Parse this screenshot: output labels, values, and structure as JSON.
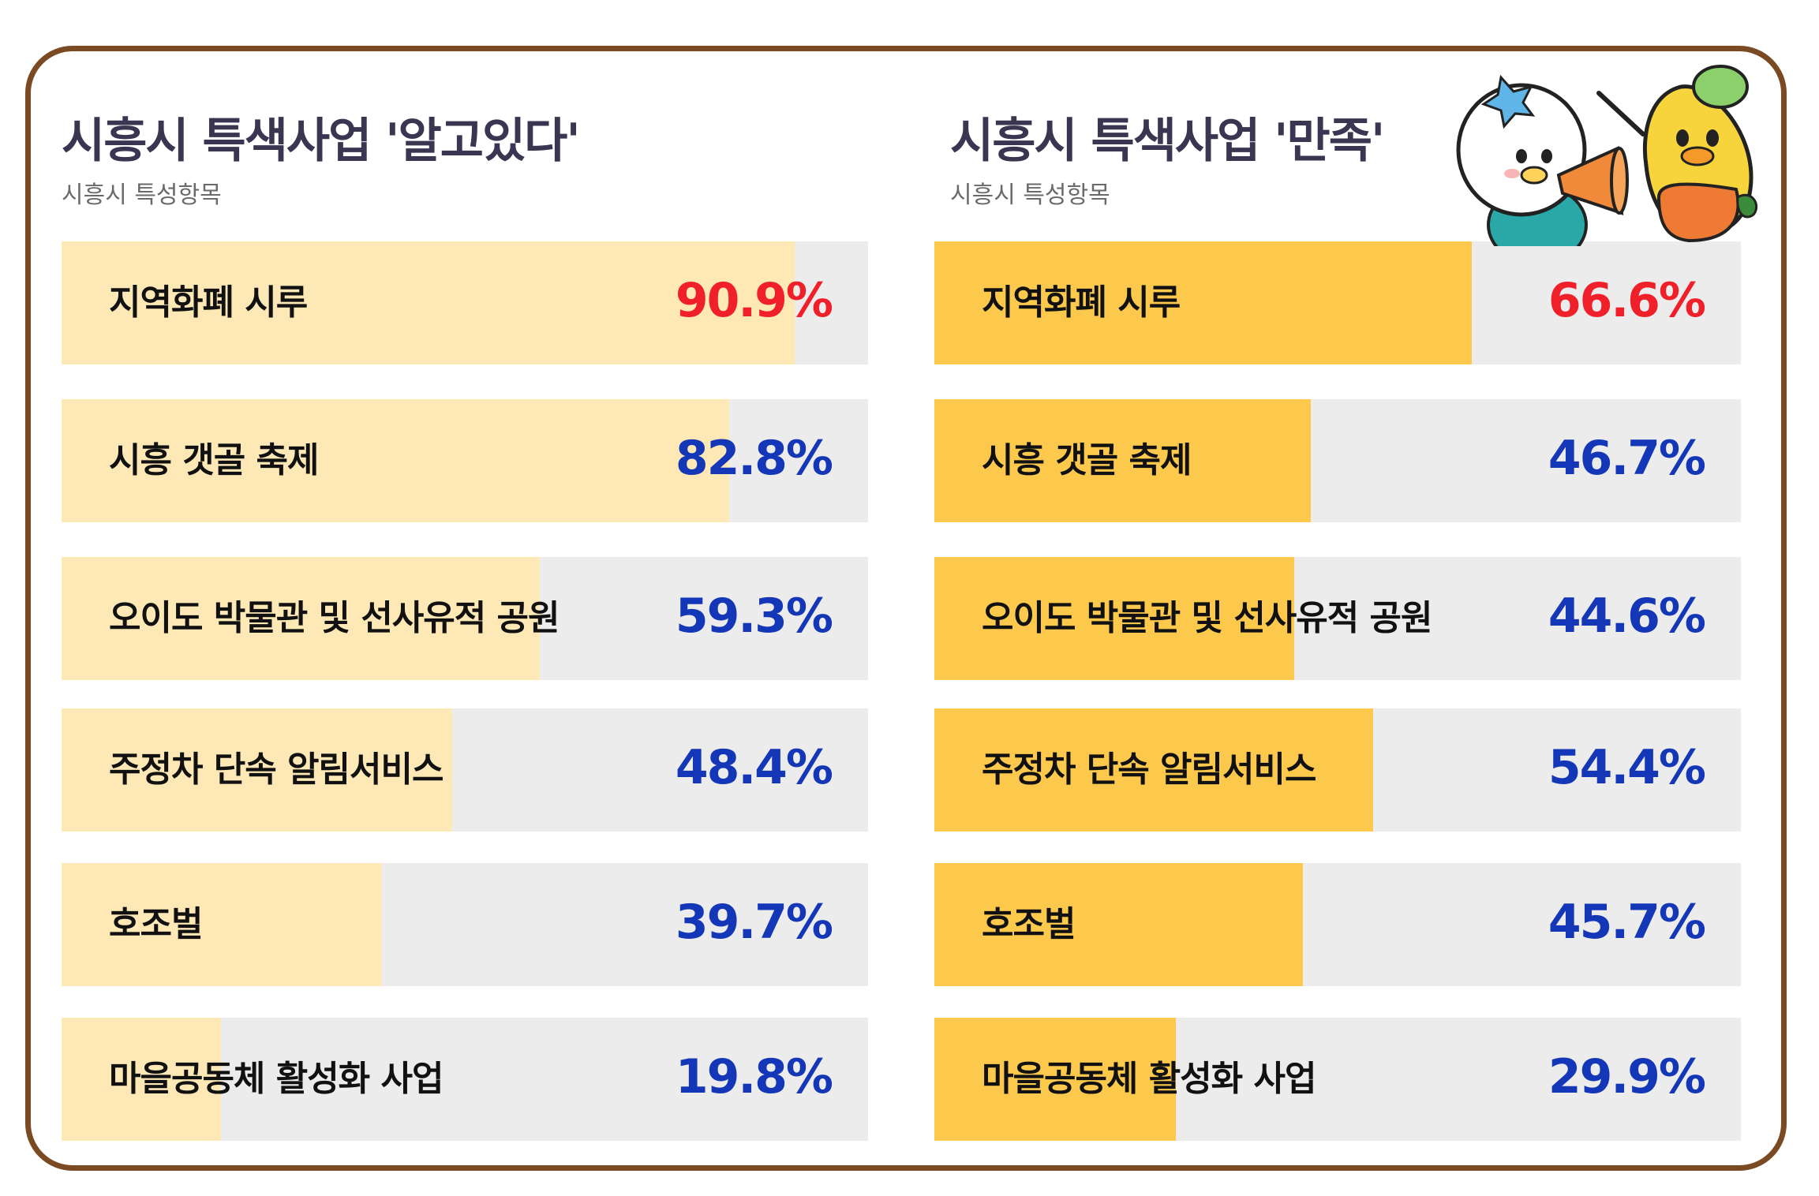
{
  "colors": {
    "border": "#7a4a22",
    "track": "#ececec",
    "fill_left": "#fde8b6",
    "fill_right": "#fdc94d",
    "highlight_value": "#f0202a",
    "value": "#1437b8"
  },
  "chart_data": [
    {
      "type": "bar",
      "orientation": "horizontal",
      "title": "시흥시 특색사업 '알고있다'",
      "subtitle": "시흥시 특성항목",
      "unit": "%",
      "xlim": [
        0,
        100
      ],
      "categories": [
        "지역화폐 시루",
        "시흥 갯골 축제",
        "오이도 박물관 및 선사유적 공원",
        "주정차 단속 알림서비스",
        "호조벌",
        "마을공동체 활성화 사업"
      ],
      "values": [
        90.9,
        82.8,
        59.3,
        48.4,
        39.7,
        19.8
      ],
      "value_labels": [
        "90.9%",
        "82.8%",
        "59.3%",
        "48.4%",
        "39.7%",
        "19.8%"
      ],
      "highlight_index": 0
    },
    {
      "type": "bar",
      "orientation": "horizontal",
      "title": "시흥시 특색사업 '만족'",
      "subtitle": "시흥시 특성항목",
      "unit": "%",
      "xlim": [
        0,
        100
      ],
      "categories": [
        "지역화폐 시루",
        "시흥 갯골 축제",
        "오이도 박물관 및 선사유적 공원",
        "주정차 단속 알림서비스",
        "호조벌",
        "마을공동체 활성화 사업"
      ],
      "values": [
        66.6,
        46.7,
        44.6,
        54.4,
        45.7,
        29.9
      ],
      "value_labels": [
        "66.6%",
        "46.7%",
        "44.6%",
        "54.4%",
        "45.7%",
        "29.9%"
      ],
      "highlight_index": 0
    }
  ],
  "mascots": {
    "left": "white-duck-mascot-with-megaphone",
    "right": "yellow-pear-mascot-with-pointer"
  }
}
